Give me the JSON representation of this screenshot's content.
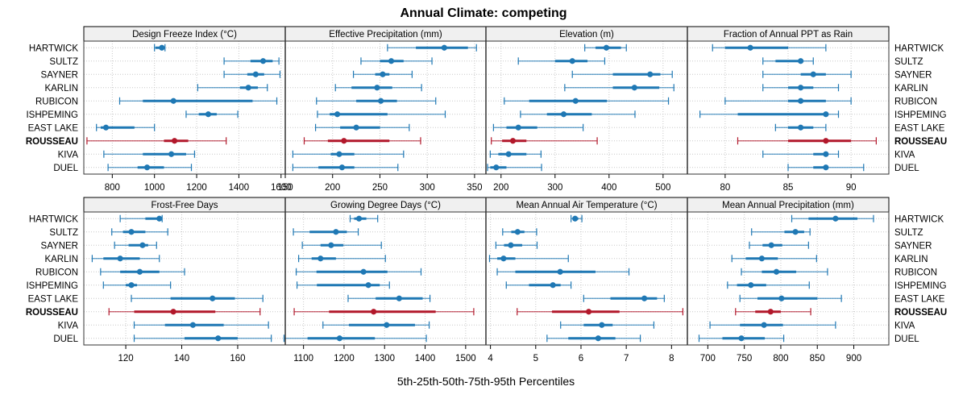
{
  "chart_data": {
    "type": "dotplot-percentiles",
    "title": "Annual Climate: competing",
    "xlabel": "5th-25th-50th-75th-95th Percentiles",
    "sites": [
      "HARTWICK",
      "SULTZ",
      "SAYNER",
      "KARLIN",
      "RUBICON",
      "ISHPEMING",
      "EAST LAKE",
      "ROUSSEAU",
      "KIVA",
      "DUEL"
    ],
    "highlight_site": "ROUSSEAU",
    "colors": {
      "default": "#1f78b4",
      "highlight": "#b2182b",
      "strip": "#f0f0f0",
      "grid": "#c8c8c8"
    },
    "panels": [
      {
        "name": "Design Freeze Index (°C)",
        "xlim": [
          665,
          1620
        ],
        "ticks": [
          800,
          1000,
          1200,
          1400,
          1600
        ],
        "tick_labels": [
          "800",
          "1000",
          "1200",
          "1400",
          "1600"
        ],
        "values": [
          [
            1000,
            1005,
            1035,
            1045,
            1050
          ],
          [
            1330,
            1455,
            1515,
            1560,
            1590
          ],
          [
            1330,
            1440,
            1480,
            1520,
            1595
          ],
          [
            1205,
            1405,
            1445,
            1490,
            1535
          ],
          [
            835,
            945,
            1090,
            1465,
            1580
          ],
          [
            1150,
            1210,
            1255,
            1295,
            1395
          ],
          [
            725,
            745,
            770,
            905,
            1000
          ],
          [
            680,
            1045,
            1095,
            1160,
            1340
          ],
          [
            760,
            945,
            1080,
            1150,
            1190
          ],
          [
            780,
            920,
            965,
            1045,
            1175
          ]
        ]
      },
      {
        "name": "Effective Precipitation (mm)",
        "xlim": [
          150,
          362
        ],
        "ticks": [
          150,
          200,
          250,
          300,
          350
        ],
        "tick_labels": [
          "150",
          "200",
          "250",
          "300",
          "350"
        ],
        "values": [
          [
            258,
            288,
            318,
            343,
            352
          ],
          [
            230,
            250,
            262,
            275,
            305
          ],
          [
            222,
            245,
            253,
            260,
            284
          ],
          [
            203,
            220,
            247,
            263,
            294
          ],
          [
            183,
            225,
            251,
            268,
            309
          ],
          [
            184,
            197,
            205,
            258,
            319
          ],
          [
            182,
            208,
            225,
            250,
            281
          ],
          [
            170,
            195,
            212,
            260,
            293
          ],
          [
            158,
            198,
            207,
            223,
            275
          ],
          [
            158,
            185,
            210,
            223,
            269
          ]
        ]
      },
      {
        "name": "Elevation (m)",
        "xlim": [
          172,
          545
        ],
        "ticks": [
          200,
          300,
          400,
          500
        ],
        "tick_labels": [
          "200",
          "300",
          "400",
          "500"
        ],
        "values": [
          [
            355,
            375,
            395,
            422,
            432
          ],
          [
            232,
            300,
            332,
            360,
            392
          ],
          [
            332,
            407,
            476,
            495,
            517
          ],
          [
            318,
            407,
            447,
            493,
            520
          ],
          [
            206,
            252,
            338,
            396,
            510
          ],
          [
            236,
            285,
            316,
            368,
            448
          ],
          [
            186,
            210,
            232,
            267,
            352
          ],
          [
            182,
            202,
            222,
            247,
            378
          ],
          [
            180,
            195,
            214,
            247,
            274
          ],
          [
            175,
            180,
            191,
            210,
            275
          ]
        ]
      },
      {
        "name": "Fraction of Annual PPT as Rain",
        "xlim": [
          77,
          93
        ],
        "ticks": [
          80,
          85,
          90
        ],
        "tick_labels": [
          "80",
          "85",
          "90"
        ],
        "values": [
          [
            79,
            80,
            82,
            85,
            88
          ],
          [
            83,
            84,
            86,
            86,
            87
          ],
          [
            83,
            86,
            87,
            88,
            90
          ],
          [
            83,
            85,
            86,
            87,
            89
          ],
          [
            80,
            85,
            86,
            88,
            90
          ],
          [
            78,
            81,
            88,
            88,
            89
          ],
          [
            84,
            85,
            86,
            87,
            88
          ],
          [
            81,
            85,
            88,
            90,
            92
          ],
          [
            83,
            87,
            88,
            88,
            89
          ],
          [
            85,
            87,
            88,
            88,
            91
          ]
        ]
      },
      {
        "name": "Frost-Free Days",
        "xlim": [
          105,
          177
        ],
        "ticks": [
          120,
          140,
          160
        ],
        "tick_labels": [
          "120",
          "140",
          "160"
        ],
        "values": [
          [
            118,
            127,
            132,
            133,
            133
          ],
          [
            115,
            119,
            122,
            127,
            135
          ],
          [
            116,
            121,
            126,
            128,
            131
          ],
          [
            108,
            112,
            118,
            125,
            132
          ],
          [
            111,
            118,
            125,
            132,
            141
          ],
          [
            112,
            120,
            122,
            124,
            136
          ],
          [
            122,
            136,
            151,
            159,
            169
          ],
          [
            114,
            123,
            137,
            152,
            168
          ],
          [
            123,
            134,
            144,
            155,
            171
          ],
          [
            123,
            141,
            153,
            160,
            172
          ]
        ]
      },
      {
        "name": "Growing Degree Days (°C)",
        "xlim": [
          1055,
          1550
        ],
        "ticks": [
          1100,
          1200,
          1300,
          1400,
          1500
        ],
        "tick_labels": [
          "1100",
          "1200",
          "1300",
          "1400",
          "1500"
        ],
        "values": [
          [
            1215,
            1225,
            1237,
            1255,
            1283
          ],
          [
            1075,
            1115,
            1180,
            1207,
            1235
          ],
          [
            1097,
            1142,
            1168,
            1198,
            1292
          ],
          [
            1088,
            1120,
            1142,
            1180,
            1302
          ],
          [
            1082,
            1132,
            1248,
            1307,
            1390
          ],
          [
            1084,
            1133,
            1260,
            1288,
            1312
          ],
          [
            1210,
            1278,
            1336,
            1394,
            1412
          ],
          [
            1077,
            1163,
            1273,
            1426,
            1520
          ],
          [
            1148,
            1212,
            1305,
            1375,
            1410
          ],
          [
            1052,
            1110,
            1189,
            1276,
            1403
          ]
        ]
      },
      {
        "name": "Mean Annual Air Temperature (°C)",
        "xlim": [
          3.9,
          8.35
        ],
        "ticks": [
          4,
          5,
          6,
          7,
          8
        ],
        "tick_labels": [
          "4",
          "5",
          "6",
          "7",
          "8"
        ],
        "values": [
          [
            5.78,
            5.82,
            5.87,
            5.94,
            6.02
          ],
          [
            4.27,
            4.46,
            4.6,
            4.75,
            5.02
          ],
          [
            4.12,
            4.3,
            4.45,
            4.7,
            5.03
          ],
          [
            3.98,
            4.15,
            4.29,
            4.55,
            5.72
          ],
          [
            4.15,
            4.55,
            5.54,
            6.32,
            7.06
          ],
          [
            4.35,
            4.85,
            5.38,
            5.55,
            5.78
          ],
          [
            6.06,
            6.65,
            7.4,
            7.68,
            7.84
          ],
          [
            4.59,
            5.36,
            6.17,
            6.85,
            8.25
          ],
          [
            5.55,
            6.06,
            6.46,
            6.7,
            7.61
          ],
          [
            5.25,
            5.72,
            6.38,
            6.76,
            7.31
          ]
        ]
      },
      {
        "name": "Mean Annual Precipitation (mm)",
        "xlim": [
          672,
          948
        ],
        "ticks": [
          700,
          750,
          800,
          850,
          900
        ],
        "tick_labels": [
          "700",
          "750",
          "800",
          "850",
          "900"
        ],
        "values": [
          [
            815,
            838,
            875,
            905,
            927
          ],
          [
            760,
            805,
            820,
            832,
            840
          ],
          [
            757,
            775,
            787,
            802,
            838
          ],
          [
            733,
            752,
            774,
            796,
            849
          ],
          [
            746,
            774,
            794,
            821,
            864
          ],
          [
            727,
            740,
            759,
            780,
            839
          ],
          [
            744,
            768,
            801,
            850,
            883
          ],
          [
            738,
            765,
            786,
            800,
            841
          ],
          [
            703,
            744,
            777,
            803,
            875
          ],
          [
            688,
            720,
            746,
            778,
            804
          ]
        ]
      }
    ]
  }
}
